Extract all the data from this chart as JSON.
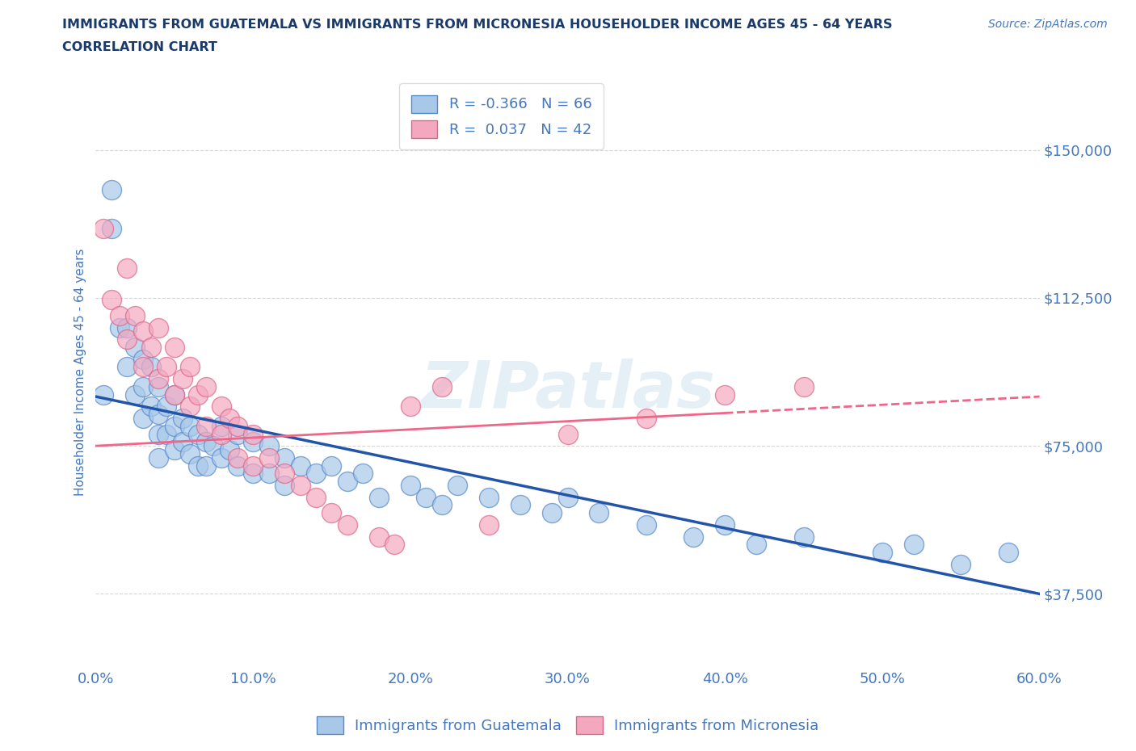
{
  "title_line1": "IMMIGRANTS FROM GUATEMALA VS IMMIGRANTS FROM MICRONESIA HOUSEHOLDER INCOME AGES 45 - 64 YEARS",
  "title_line2": "CORRELATION CHART",
  "source_text": "Source: ZipAtlas.com",
  "ylabel": "Householder Income Ages 45 - 64 years",
  "xmin": 0.0,
  "xmax": 0.6,
  "ymin": 18750,
  "ymax": 168750,
  "yticks": [
    37500,
    75000,
    112500,
    150000
  ],
  "ytick_labels": [
    "$37,500",
    "$75,000",
    "$112,500",
    "$150,000"
  ],
  "xticks": [
    0.0,
    0.1,
    0.2,
    0.3,
    0.4,
    0.5,
    0.6
  ],
  "xtick_labels": [
    "0.0%",
    "10.0%",
    "20.0%",
    "30.0%",
    "40.0%",
    "50.0%",
    "60.0%"
  ],
  "guatemala_color": "#a8c8e8",
  "micronesia_color": "#f4a8c0",
  "guatemala_edge": "#5588cc",
  "micronesia_edge": "#dd6688",
  "trend_guatemala_color": "#2255aa",
  "trend_micronesia_color": "#ee6688",
  "R_guatemala": -0.366,
  "N_guatemala": 66,
  "R_micronesia": 0.037,
  "N_micronesia": 42,
  "legend_label_guatemala": "Immigrants from Guatemala",
  "legend_label_micronesia": "Immigrants from Micronesia",
  "watermark": "ZIPatlas",
  "title_color": "#1a3a6b",
  "axis_label_color": "#4477bb",
  "tick_label_color": "#4477bb",
  "grid_color": "#cccccc",
  "background_color": "#ffffff",
  "trend_g_y0": 87500,
  "trend_g_y1": 37500,
  "trend_m_y0": 75000,
  "trend_m_y1": 87500,
  "guatemala_scatter_x": [
    0.005,
    0.01,
    0.01,
    0.015,
    0.02,
    0.02,
    0.025,
    0.025,
    0.03,
    0.03,
    0.03,
    0.035,
    0.035,
    0.04,
    0.04,
    0.04,
    0.04,
    0.045,
    0.045,
    0.05,
    0.05,
    0.05,
    0.055,
    0.055,
    0.06,
    0.06,
    0.065,
    0.065,
    0.07,
    0.07,
    0.075,
    0.08,
    0.08,
    0.085,
    0.09,
    0.09,
    0.1,
    0.1,
    0.11,
    0.11,
    0.12,
    0.12,
    0.13,
    0.14,
    0.15,
    0.16,
    0.17,
    0.18,
    0.2,
    0.21,
    0.22,
    0.23,
    0.25,
    0.27,
    0.29,
    0.3,
    0.32,
    0.35,
    0.38,
    0.4,
    0.42,
    0.45,
    0.5,
    0.52,
    0.55,
    0.58
  ],
  "guatemala_scatter_y": [
    88000,
    140000,
    130000,
    105000,
    105000,
    95000,
    100000,
    88000,
    97000,
    90000,
    82000,
    95000,
    85000,
    90000,
    83000,
    78000,
    72000,
    85000,
    78000,
    88000,
    80000,
    74000,
    82000,
    76000,
    80000,
    73000,
    78000,
    70000,
    76000,
    70000,
    75000,
    80000,
    72000,
    74000,
    78000,
    70000,
    76000,
    68000,
    75000,
    68000,
    72000,
    65000,
    70000,
    68000,
    70000,
    66000,
    68000,
    62000,
    65000,
    62000,
    60000,
    65000,
    62000,
    60000,
    58000,
    62000,
    58000,
    55000,
    52000,
    55000,
    50000,
    52000,
    48000,
    50000,
    45000,
    48000
  ],
  "micronesia_scatter_x": [
    0.005,
    0.01,
    0.015,
    0.02,
    0.02,
    0.025,
    0.03,
    0.03,
    0.035,
    0.04,
    0.04,
    0.045,
    0.05,
    0.05,
    0.055,
    0.06,
    0.06,
    0.065,
    0.07,
    0.07,
    0.08,
    0.08,
    0.085,
    0.09,
    0.09,
    0.1,
    0.1,
    0.11,
    0.12,
    0.13,
    0.14,
    0.15,
    0.16,
    0.18,
    0.19,
    0.2,
    0.22,
    0.25,
    0.3,
    0.35,
    0.4,
    0.45
  ],
  "micronesia_scatter_y": [
    130000,
    112000,
    108000,
    120000,
    102000,
    108000,
    104000,
    95000,
    100000,
    105000,
    92000,
    95000,
    100000,
    88000,
    92000,
    95000,
    85000,
    88000,
    90000,
    80000,
    85000,
    78000,
    82000,
    80000,
    72000,
    78000,
    70000,
    72000,
    68000,
    65000,
    62000,
    58000,
    55000,
    52000,
    50000,
    85000,
    90000,
    55000,
    78000,
    82000,
    88000,
    90000
  ]
}
